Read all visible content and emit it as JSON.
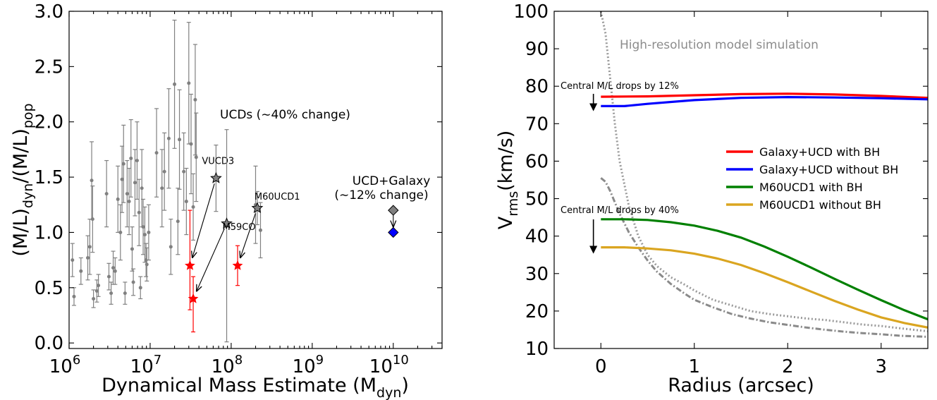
{
  "chart_data": [
    {
      "type": "scatter",
      "xlabel": "Dynamical Mass Estimate (M",
      "xlabel_sub": "dyn",
      "xlabel_end": ")",
      "ylabel_a": "(M/L)",
      "ylabel_sub_a": "dyn",
      "ylabel_b": "/(M/L)",
      "ylabel_sub_b": "pop",
      "xscale": "log",
      "xlim": [
        1000000,
        40000000000
      ],
      "ylim": [
        -0.05,
        3.0
      ],
      "x_ticks": [
        {
          "base": "10",
          "exp": "6",
          "value": 1000000
        },
        {
          "base": "10",
          "exp": "7",
          "value": 10000000
        },
        {
          "base": "10",
          "exp": "8",
          "value": 100000000
        },
        {
          "base": "10",
          "exp": "9",
          "value": 1000000000
        },
        {
          "base": "10",
          "exp": "10",
          "value": 10000000000
        }
      ],
      "y_ticks": [
        {
          "label": "0.0",
          "value": 0.0
        },
        {
          "label": "0.5",
          "value": 0.5
        },
        {
          "label": "1.0",
          "value": 1.0
        },
        {
          "label": "1.5",
          "value": 1.5
        },
        {
          "label": "2.0",
          "value": 2.0
        },
        {
          "label": "2.5",
          "value": 2.5
        },
        {
          "label": "3.0",
          "value": 3.0
        }
      ],
      "gray_points": [
        {
          "x": 1100000,
          "y": 0.75,
          "e": 0.15
        },
        {
          "x": 1150000,
          "y": 0.42,
          "e": 0.08
        },
        {
          "x": 1400000,
          "y": 0.65,
          "e": 0.12
        },
        {
          "x": 1700000,
          "y": 0.77,
          "e": 0.2
        },
        {
          "x": 1800000,
          "y": 0.87,
          "e": 0.25
        },
        {
          "x": 1900000,
          "y": 1.47,
          "e": 0.35
        },
        {
          "x": 1950000,
          "y": 1.12,
          "e": 0.3
        },
        {
          "x": 2000000,
          "y": 0.4,
          "e": 0.08
        },
        {
          "x": 2200000,
          "y": 0.47,
          "e": 0.1
        },
        {
          "x": 2300000,
          "y": 0.52,
          "e": 0.1
        },
        {
          "x": 2900000,
          "y": 1.35,
          "e": 0.3
        },
        {
          "x": 3100000,
          "y": 0.6,
          "e": 0.12
        },
        {
          "x": 3300000,
          "y": 0.45,
          "e": 0.1
        },
        {
          "x": 3500000,
          "y": 0.68,
          "e": 0.15
        },
        {
          "x": 3700000,
          "y": 0.65,
          "e": 0.12
        },
        {
          "x": 4000000,
          "y": 1.3,
          "e": 0.3
        },
        {
          "x": 4300000,
          "y": 1.0,
          "e": 0.25
        },
        {
          "x": 4500000,
          "y": 1.48,
          "e": 0.3
        },
        {
          "x": 4700000,
          "y": 1.62,
          "e": 0.35
        },
        {
          "x": 4900000,
          "y": 0.45,
          "e": 0.1
        },
        {
          "x": 5200000,
          "y": 1.35,
          "e": 0.3
        },
        {
          "x": 5500000,
          "y": 1.28,
          "e": 0.3
        },
        {
          "x": 5800000,
          "y": 1.67,
          "e": 0.35
        },
        {
          "x": 6000000,
          "y": 0.85,
          "e": 0.2
        },
        {
          "x": 6200000,
          "y": 0.55,
          "e": 0.12
        },
        {
          "x": 6500000,
          "y": 1.45,
          "e": 0.3
        },
        {
          "x": 6900000,
          "y": 1.65,
          "e": 0.35
        },
        {
          "x": 7300000,
          "y": 1.18,
          "e": 0.3
        },
        {
          "x": 7600000,
          "y": 0.5,
          "e": 0.1
        },
        {
          "x": 7900000,
          "y": 1.4,
          "e": 0.35
        },
        {
          "x": 8200000,
          "y": 1.05,
          "e": 0.25
        },
        {
          "x": 8600000,
          "y": 0.98,
          "e": 0.25
        },
        {
          "x": 8900000,
          "y": 0.75,
          "e": 0.15
        },
        {
          "x": 9100000,
          "y": 0.71,
          "e": 0.15
        },
        {
          "x": 9600000,
          "y": 1.0,
          "e": 0.25
        },
        {
          "x": 12000000,
          "y": 1.72,
          "e": 0.4
        },
        {
          "x": 14000000,
          "y": 1.4,
          "e": 0.35
        },
        {
          "x": 15000000,
          "y": 1.55,
          "e": 0.35
        },
        {
          "x": 17000000,
          "y": 1.85,
          "e": 0.45
        },
        {
          "x": 18000000,
          "y": 0.87,
          "e": 0.25
        },
        {
          "x": 20000000,
          "y": 2.34,
          "e": 0.58
        },
        {
          "x": 22000000,
          "y": 1.1,
          "e": 0.3
        },
        {
          "x": 23000000,
          "y": 1.84,
          "e": 0.45
        },
        {
          "x": 26000000,
          "y": 1.55,
          "e": 0.35
        },
        {
          "x": 28000000,
          "y": 1.28,
          "e": 0.3
        },
        {
          "x": 30000000,
          "y": 2.35,
          "e": 0.55
        },
        {
          "x": 32000000,
          "y": 1.8,
          "e": 0.45
        },
        {
          "x": 34000000,
          "y": 1.23,
          "e": 0.3
        },
        {
          "x": 36000000,
          "y": 2.2,
          "e": 0.5
        },
        {
          "x": 37000000,
          "y": 1.68,
          "e": 0.4
        },
        {
          "x": 200000000,
          "y": 1.25,
          "e": 0.35
        },
        {
          "x": 230000000,
          "y": 1.02,
          "e": 0.25
        }
      ],
      "named_objects": [
        {
          "label": "VUCD3",
          "x": 65000000,
          "y": 1.49,
          "e": 0.3,
          "red_x": 31000000,
          "red_y": 0.7,
          "red_e_low": 0.4,
          "red_e_high": 0.5
        },
        {
          "label": "M59CO",
          "x": 88000000,
          "y": 1.08,
          "e_low": 1.07,
          "e_high": 0.85,
          "red_x": 34000000,
          "red_y": 0.4,
          "red_e_low": 0.3,
          "red_e_high": 0.2
        },
        {
          "label": "M60UCD1",
          "x": 210000000,
          "y": 1.22,
          "e": 0.15,
          "red_x": 120000000,
          "red_y": 0.7,
          "red_e_low": 0.18,
          "red_e_high": 0.18
        }
      ],
      "ucd_galaxy": {
        "label_1": "UCD+Galaxy",
        "label_2": "(∼12% change)",
        "gray_x": 10000000000,
        "gray_y": 1.2,
        "blue_x": 10000000000,
        "blue_y": 1.0
      },
      "annotation_ucds": "UCDs (∼40% change)",
      "colors": {
        "gray": "#808080",
        "red": "#ff0000",
        "blue": "#0000ff",
        "diamond_gray": "#808080"
      }
    },
    {
      "type": "line",
      "xlabel": "Radius (arcsec)",
      "ylabel": "V",
      "ylabel_sub": "rms",
      "ylabel_end": "(km/s)",
      "xlim": [
        -0.5,
        3.5
      ],
      "ylim": [
        10,
        100
      ],
      "x_ticks": [
        0,
        1,
        2,
        3
      ],
      "y_ticks": [
        10,
        20,
        30,
        40,
        50,
        60,
        70,
        80,
        90,
        100
      ],
      "series": [
        {
          "name": "Galaxy+UCD with BH",
          "color": "#ff0000",
          "x": [
            0,
            0.5,
            1,
            1.5,
            2,
            2.5,
            3,
            3.5
          ],
          "y": [
            77.2,
            77.3,
            77.6,
            77.9,
            78.0,
            77.8,
            77.4,
            76.9
          ]
        },
        {
          "name": "Galaxy+UCD without BH",
          "color": "#0000ff",
          "x": [
            0,
            0.25,
            0.5,
            1,
            1.5,
            2,
            2.5,
            3,
            3.5
          ],
          "y": [
            74.7,
            74.7,
            75.3,
            76.3,
            76.9,
            77.1,
            77.0,
            76.8,
            76.5
          ]
        },
        {
          "name": "M60UCD1 with BH",
          "color": "#008000",
          "x": [
            0,
            0.25,
            0.5,
            0.75,
            1,
            1.25,
            1.5,
            1.75,
            2,
            2.25,
            2.5,
            2.75,
            3,
            3.25,
            3.5
          ],
          "y": [
            44.5,
            44.5,
            44.3,
            43.7,
            42.8,
            41.4,
            39.6,
            37.2,
            34.5,
            31.6,
            28.6,
            25.7,
            22.9,
            20.2,
            17.8
          ]
        },
        {
          "name": "M60UCD1 without BH",
          "color": "#daa520",
          "x": [
            0,
            0.25,
            0.5,
            0.75,
            1,
            1.25,
            1.5,
            1.75,
            2,
            2.25,
            2.5,
            2.75,
            3,
            3.25,
            3.5
          ],
          "y": [
            37.0,
            37.0,
            36.7,
            36.2,
            35.3,
            34.0,
            32.3,
            30.1,
            27.7,
            25.2,
            22.7,
            20.4,
            18.3,
            16.8,
            15.6
          ]
        }
      ],
      "dotted_curve": {
        "x": [
          0,
          0.05,
          0.1,
          0.15,
          0.2,
          0.3,
          0.4,
          0.5,
          0.6,
          0.75,
          0.9,
          1.0,
          1.2,
          1.4,
          1.6,
          1.8,
          2.0,
          2.2,
          2.4,
          2.6,
          2.8,
          3.0,
          3.2,
          3.5
        ],
        "y": [
          100,
          94,
          82,
          70,
          60,
          48,
          40,
          35,
          32,
          29,
          27,
          25.5,
          23,
          21.5,
          20,
          19.2,
          18.6,
          18,
          17.6,
          17,
          16.4,
          16,
          15.4,
          14.6
        ]
      },
      "dashdot_curve": {
        "x": [
          0,
          0.05,
          0.1,
          0.15,
          0.2,
          0.3,
          0.4,
          0.5,
          0.6,
          0.75,
          0.9,
          1.0,
          1.2,
          1.4,
          1.6,
          1.8,
          2.0,
          2.2,
          2.4,
          2.6,
          2.8,
          3.0,
          3.2,
          3.5
        ],
        "y": [
          55.5,
          54.5,
          52,
          49,
          46,
          41,
          37,
          33.5,
          30.5,
          27.2,
          24.6,
          23,
          21,
          19.2,
          18,
          17,
          16.3,
          15.6,
          15,
          14.5,
          14.1,
          13.8,
          13.4,
          13.1
        ]
      },
      "annotations": {
        "sim": "High-resolution model simulation",
        "drop12": "Central M/L drops by 12%",
        "drop40": "Central M/L drops by 40%"
      },
      "legend_position": "center-right"
    }
  ]
}
